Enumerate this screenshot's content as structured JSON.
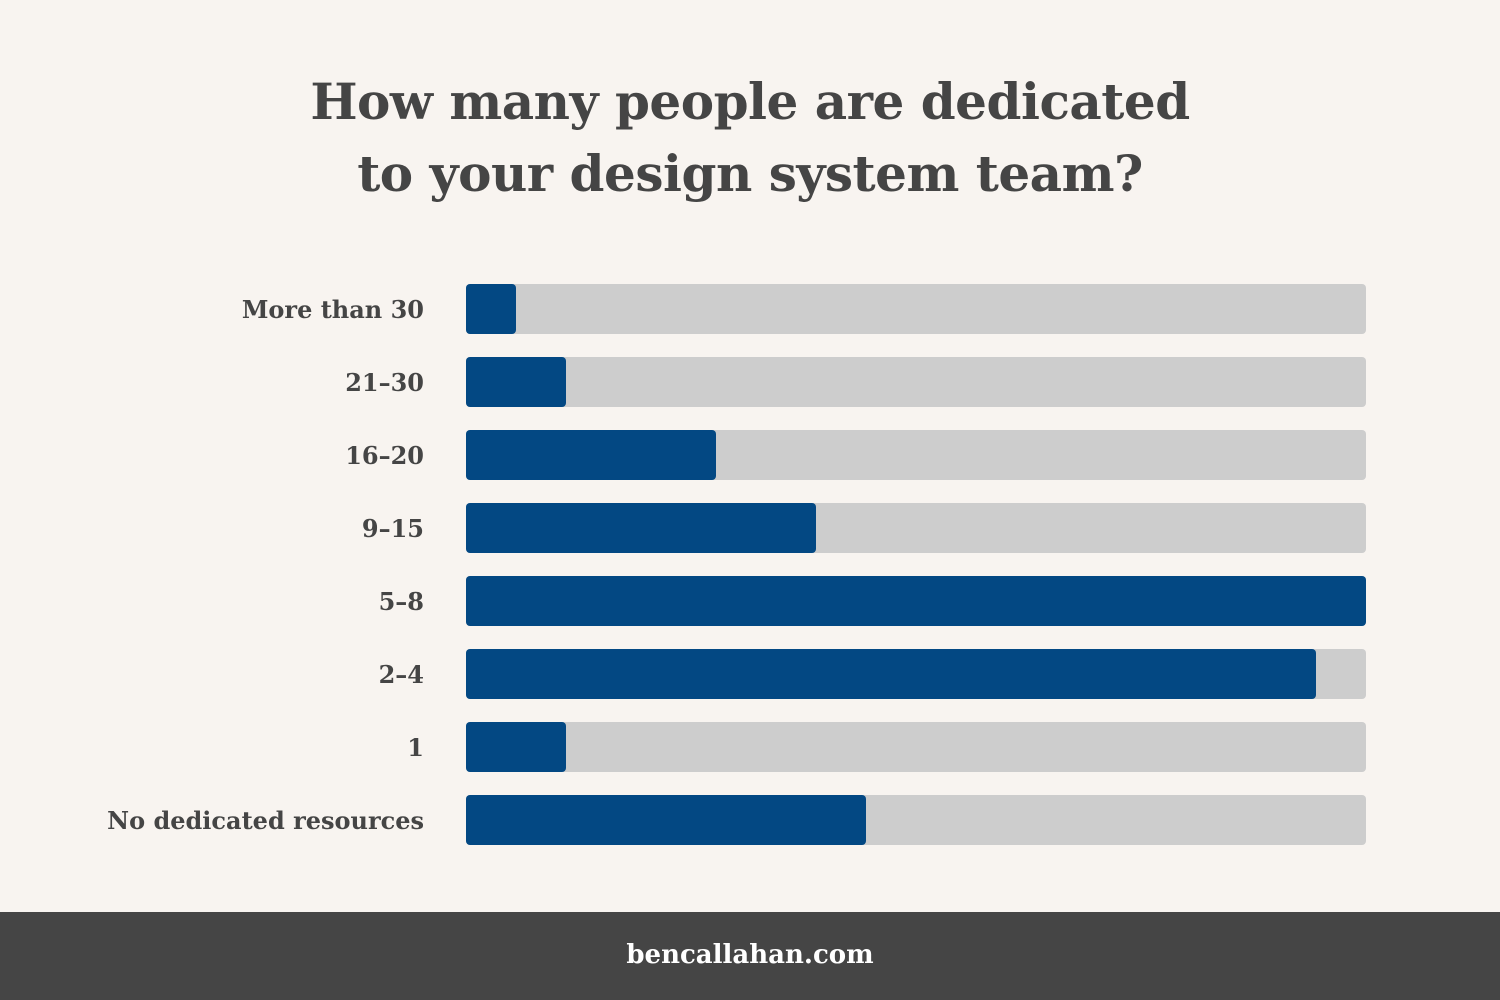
{
  "title_lines": [
    "How many people are dedicated",
    "to your design system team?"
  ],
  "footer": {
    "site": "bencallahan.com"
  },
  "colors": {
    "background": "#f8f4f0",
    "bar_fill": "#034883",
    "bar_track": "#cdcdcd",
    "text": "#454545",
    "footer_bg": "#454545",
    "footer_text": "#ffffff"
  },
  "chart_data": {
    "type": "bar",
    "orientation": "horizontal",
    "title": "How many people are dedicated to your design system team?",
    "categories": [
      "More than 30",
      "21–30",
      "16–20",
      "9–15",
      "5–8",
      "2–4",
      "1",
      "No dedicated resources"
    ],
    "values": [
      1,
      2,
      5,
      7,
      18,
      17,
      2,
      8
    ],
    "xlim": [
      0,
      18
    ],
    "grid": false,
    "legend": "none"
  }
}
